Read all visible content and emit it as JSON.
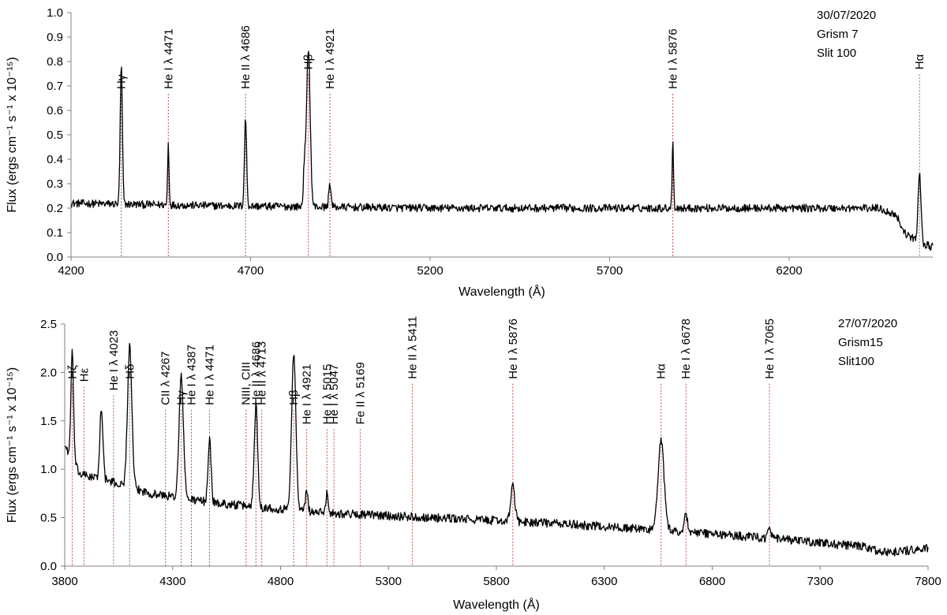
{
  "chart_data": [
    {
      "type": "line",
      "xlabel": "Wavelength (Å)",
      "ylabel": "Flux (ergs cm⁻¹ s⁻¹ x 10⁻¹⁵)",
      "xlim": [
        4200,
        6600
      ],
      "ylim": [
        0,
        1.0
      ],
      "xticks": [
        4200,
        4700,
        5200,
        5700,
        6200
      ],
      "yticks": [
        0.0,
        0.1,
        0.2,
        0.3,
        0.4,
        0.5,
        0.6,
        0.7,
        0.8,
        0.9,
        1.0
      ],
      "ytick_decimals": 1,
      "annotation": [
        "30/07/2020",
        "Grism 7",
        "Slit 100"
      ],
      "continuum": [
        [
          4200,
          0.22
        ],
        [
          4600,
          0.21
        ],
        [
          5200,
          0.2
        ],
        [
          5800,
          0.2
        ],
        [
          6450,
          0.2
        ],
        [
          6500,
          0.17
        ],
        [
          6520,
          0.1
        ],
        [
          6560,
          0.06
        ],
        [
          6600,
          0.04
        ]
      ],
      "noise": 0.016,
      "peaks": [
        {
          "x": 4340,
          "amp": 0.57,
          "w": 3
        },
        {
          "x": 4471,
          "amp": 0.25,
          "w": 2
        },
        {
          "x": 4686,
          "amp": 0.36,
          "w": 3
        },
        {
          "x": 4861,
          "amp": 0.65,
          "w": 5
        },
        {
          "x": 4850,
          "amp": 0.15,
          "w": 3
        },
        {
          "x": 4921,
          "amp": 0.1,
          "w": 3
        },
        {
          "x": 5876,
          "amp": 0.28,
          "w": 2
        },
        {
          "x": 6563,
          "amp": 0.29,
          "w": 4
        }
      ],
      "lines": [
        {
          "x": 4340,
          "label": "Hγ",
          "label_top": 0.9
        },
        {
          "x": 4471,
          "label": "He I λ 4471",
          "label_top": 0.9
        },
        {
          "x": 4686,
          "label": "He II λ 4686",
          "label_top": 0.9
        },
        {
          "x": 4861,
          "label": "Hβ",
          "label_top": 0.98
        },
        {
          "x": 4921,
          "label": "He I λ 4921",
          "label_top": 0.9
        },
        {
          "x": 5876,
          "label": "He I λ 5876",
          "label_top": 0.9
        },
        {
          "x": 6563,
          "label": "Hα",
          "label_top": 0.98
        }
      ]
    },
    {
      "type": "line",
      "xlabel": "Wavelength (Å)",
      "ylabel": "Flux (ergs cm⁻¹ s⁻¹ x 10⁻¹⁵)",
      "xlim": [
        3800,
        7800
      ],
      "ylim": [
        0,
        2.5
      ],
      "xticks": [
        3800,
        4300,
        4800,
        5300,
        5800,
        6300,
        6800,
        7300,
        7800
      ],
      "yticks": [
        0.0,
        0.5,
        1.0,
        1.5,
        2.0,
        2.5
      ],
      "ytick_decimals": 1,
      "annotation": [
        "27/07/2020",
        "Grism15",
        "Slit100"
      ],
      "continuum": [
        [
          3800,
          1.25
        ],
        [
          3870,
          0.95
        ],
        [
          4000,
          0.88
        ],
        [
          4200,
          0.75
        ],
        [
          4500,
          0.65
        ],
        [
          5000,
          0.55
        ],
        [
          5500,
          0.5
        ],
        [
          6000,
          0.45
        ],
        [
          6500,
          0.38
        ],
        [
          7000,
          0.3
        ],
        [
          7500,
          0.2
        ],
        [
          7600,
          0.14
        ],
        [
          7800,
          0.18
        ]
      ],
      "noise": 0.045,
      "peaks": [
        {
          "x": 3835,
          "amp": 1.1,
          "w": 6
        },
        {
          "x": 3889,
          "amp": 0.0,
          "w": 6
        },
        {
          "x": 3970,
          "amp": 0.75,
          "w": 7
        },
        {
          "x": 4101,
          "amp": 1.45,
          "w": 10
        },
        {
          "x": 4340,
          "amp": 1.25,
          "w": 10
        },
        {
          "x": 4471,
          "amp": 0.65,
          "w": 7
        },
        {
          "x": 4686,
          "amp": 1.05,
          "w": 8
        },
        {
          "x": 4861,
          "amp": 1.6,
          "w": 10
        },
        {
          "x": 4921,
          "amp": 0.2,
          "w": 6
        },
        {
          "x": 5015,
          "amp": 0.2,
          "w": 6
        },
        {
          "x": 5876,
          "amp": 0.38,
          "w": 9
        },
        {
          "x": 6563,
          "amp": 0.92,
          "w": 14
        },
        {
          "x": 6678,
          "amp": 0.18,
          "w": 8
        },
        {
          "x": 7065,
          "amp": 0.08,
          "w": 8
        }
      ],
      "lines": [
        {
          "x": 3835,
          "label": "Hζ",
          "label_top": 2.47
        },
        {
          "x": 3889,
          "label": "Hε",
          "label_top": 2.44
        },
        {
          "x": 4026,
          "label": "He I λ 4023",
          "label_top": 2.35
        },
        {
          "x": 4101,
          "label": "Hδ",
          "label_top": 2.47
        },
        {
          "x": 4267,
          "label": "CII λ 4267",
          "label_top": 2.2
        },
        {
          "x": 4340,
          "label": "Hγ",
          "label_top": 2.2
        },
        {
          "x": 4387,
          "label": "He I λ 4387",
          "label_top": 2.2
        },
        {
          "x": 4471,
          "label": "He I λ 4471",
          "label_top": 2.2
        },
        {
          "x": 4640,
          "label": "NIII, CIII",
          "label_top": 2.2
        },
        {
          "x": 4686,
          "label": "He II λ 4686",
          "label_top": 2.2
        },
        {
          "x": 4713,
          "label": "He II λ 4713",
          "label_top": 2.2
        },
        {
          "x": 4861,
          "label": "Hβ",
          "label_top": 2.2
        },
        {
          "x": 4921,
          "label": "He I λ 4921",
          "label_top": 2.0
        },
        {
          "x": 5015,
          "label": "He I λ 5015",
          "label_top": 2.0
        },
        {
          "x": 5047,
          "label": "He I λ 5047",
          "label_top": 2.0
        },
        {
          "x": 5169,
          "label": "Fe II λ 5169",
          "label_top": 2.0
        },
        {
          "x": 5411,
          "label": "He II λ 5411",
          "label_top": 2.47
        },
        {
          "x": 5876,
          "label": "He I λ 5876",
          "label_top": 2.47
        },
        {
          "x": 6563,
          "label": "Hα",
          "label_top": 2.47
        },
        {
          "x": 6678,
          "label": "He I λ 6678",
          "label_top": 2.47
        },
        {
          "x": 7065,
          "label": "He I λ 7065",
          "label_top": 2.47
        }
      ]
    }
  ],
  "colors": {
    "spectrum": "#000000",
    "marker": "#c0504d",
    "axis": "#808080"
  }
}
